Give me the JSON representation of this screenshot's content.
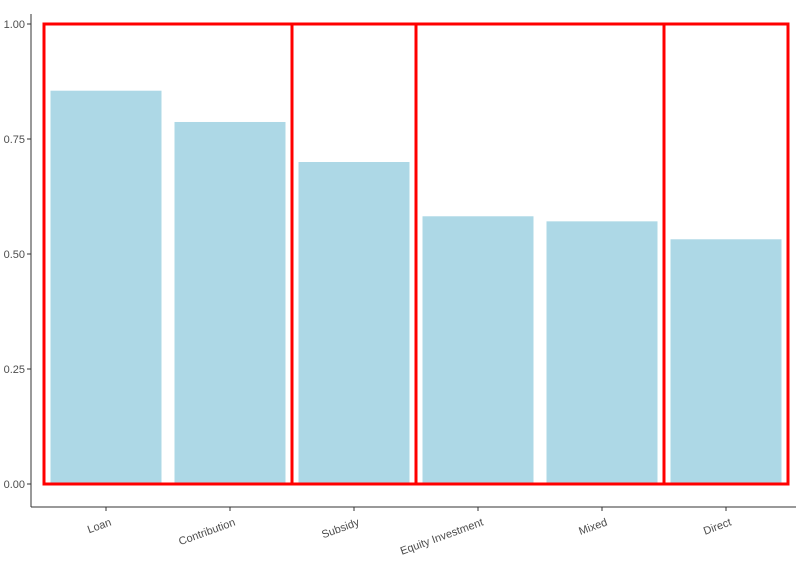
{
  "chart_data": {
    "type": "bar",
    "categories": [
      "Loan",
      "Contribution",
      "Subsidy",
      "Equity Investment",
      "Mixed",
      "Direct"
    ],
    "values": [
      0.855,
      0.787,
      0.7,
      0.582,
      0.571,
      0.532
    ],
    "yticks": [
      "0.00",
      "0.25",
      "0.50",
      "0.75",
      "1.00"
    ],
    "ylim": [
      0,
      1.0
    ],
    "title": "",
    "xlabel": "",
    "ylabel": "",
    "grid": false,
    "legend": "none",
    "bar_color": "#add8e6",
    "highlight_color": "#ff0000",
    "highlight_groups": [
      {
        "from": "Loan",
        "to": "Contribution"
      },
      {
        "from": "Subsidy",
        "to": "Subsidy"
      },
      {
        "from": "Equity Investment",
        "to": "Mixed"
      },
      {
        "from": "Direct",
        "to": "Direct"
      }
    ]
  }
}
